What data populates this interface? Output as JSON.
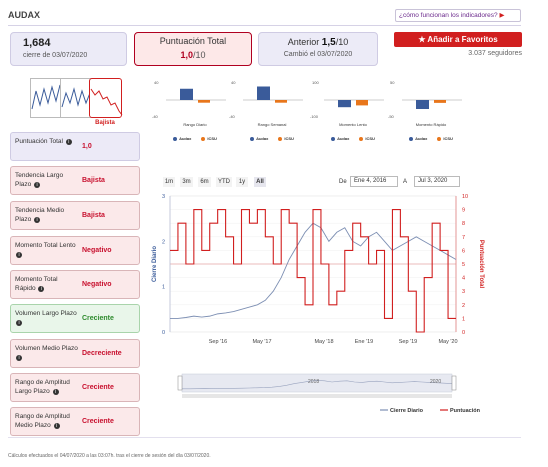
{
  "header": {
    "title": "AUDAX",
    "help_link": "¿cómo funcionan los indicadores?"
  },
  "stats": {
    "close_value": "1,684",
    "close_label": "cierre de 03/07/2020",
    "score_label": "Puntuación Total",
    "score_value": "1,0",
    "score_max": "/10",
    "prev_label": "Anterior",
    "prev_value": "1,5",
    "prev_max": "/10",
    "prev_changed": "Cambió el 03/07/2020"
  },
  "favorites": {
    "button_label": "Añadir a Favoritos",
    "followers": "3.037 seguidores"
  },
  "thumbnail_caption": "Bajista",
  "mini_charts": [
    {
      "caption": "Rango Diario",
      "top_label": "40",
      "bottom_label": "-40",
      "audax": 25,
      "ices": -6,
      "legend_a": "Audax",
      "legend_b": "ICSU"
    },
    {
      "caption": "Rango Semanal",
      "top_label": "40",
      "bottom_label": "-40",
      "audax": 30,
      "ices": -6,
      "legend_a": "Audax",
      "legend_b": "ICSU"
    },
    {
      "caption": "Momento Lento",
      "top_label": "100",
      "bottom_label": "-100",
      "audax": -40,
      "ices": -30,
      "legend_a": "Audax",
      "legend_b": "ICSU"
    },
    {
      "caption": "Momento Rápido",
      "top_label": "50",
      "bottom_label": "-50",
      "audax": -25,
      "ices": -8,
      "legend_a": "Audax",
      "legend_b": "ICSU"
    }
  ],
  "indicators": [
    {
      "name": "Puntuación Total",
      "value": "1,0",
      "kind": "total"
    },
    {
      "name": "Tendencia Largo Plazo",
      "value": "Bajista",
      "kind": "bad"
    },
    {
      "name": "Tendencia Medio Plazo",
      "value": "Bajista",
      "kind": "bad"
    },
    {
      "name": "Momento Total Lento",
      "value": "Negativo",
      "kind": "bad"
    },
    {
      "name": "Momento Total Rápido",
      "value": "Negativo",
      "kind": "bad"
    },
    {
      "name": "Volumen Largo Plazo",
      "value": "Creciente",
      "kind": "good"
    },
    {
      "name": "Volumen Medio Plazo",
      "value": "Decreciente",
      "kind": "bad"
    },
    {
      "name": "Rango de Amplitud Largo Plazo",
      "value": "Creciente",
      "kind": "bad"
    },
    {
      "name": "Rango de Amplitud Medio Plazo",
      "value": "Creciente",
      "kind": "bad"
    }
  ],
  "range_buttons": [
    "1m",
    "3m",
    "6m",
    "YTD",
    "1y",
    "All"
  ],
  "date_range": {
    "from_label": "De",
    "from": "Ene 4, 2016",
    "to_label": "A",
    "to": "Jul 3, 2020"
  },
  "chart_data": {
    "type": "line",
    "y_left_label": "Cierre Diario",
    "y_right_label": "Puntuación Total",
    "y_left_ticks": [
      "0",
      "1",
      "2",
      "3"
    ],
    "y_right_ticks": [
      "0",
      "1",
      "2",
      "3",
      "4",
      "5",
      "6",
      "7",
      "8",
      "9",
      "10"
    ],
    "x_ticks": [
      "Sep '16",
      "May '17",
      "May '18",
      "Ene '19",
      "Sep '19",
      "May '20"
    ],
    "navigator_ticks": [
      "2018",
      "2020"
    ],
    "legend": [
      "Cierre Diario",
      "Puntuación"
    ],
    "series": [
      {
        "name": "Cierre Diario",
        "color": "#7d8fb3",
        "values": [
          0.3,
          0.3,
          0.32,
          0.35,
          0.33,
          0.35,
          0.4,
          0.42,
          0.45,
          0.5,
          0.55,
          0.6,
          0.7,
          0.9,
          1.2,
          1.6,
          1.9,
          2.2,
          2.4,
          2.3,
          2.0,
          2.2,
          2.3,
          2.0,
          1.9,
          2.1,
          2.2,
          2.0,
          1.8,
          1.9,
          2.0,
          2.1,
          2.0,
          1.9,
          1.8,
          1.7,
          1.6
        ]
      },
      {
        "name": "Puntuación",
        "color": "#d11f1f",
        "values": [
          6,
          8,
          5,
          9,
          6,
          8,
          9,
          7,
          5,
          9,
          8,
          9,
          7,
          5,
          9,
          8,
          4,
          2,
          9,
          5,
          2,
          3,
          6,
          8,
          7,
          5,
          6,
          1,
          9,
          7,
          3,
          0,
          4,
          8,
          6,
          1,
          1
        ]
      }
    ],
    "y_left_range": [
      0,
      3
    ],
    "y_right_range": [
      0,
      10
    ]
  },
  "footnote": "Cálculos efectuados el 04/07/2020 a las 03:07h. tras el cierre de sesión del día 03/07/2020."
}
